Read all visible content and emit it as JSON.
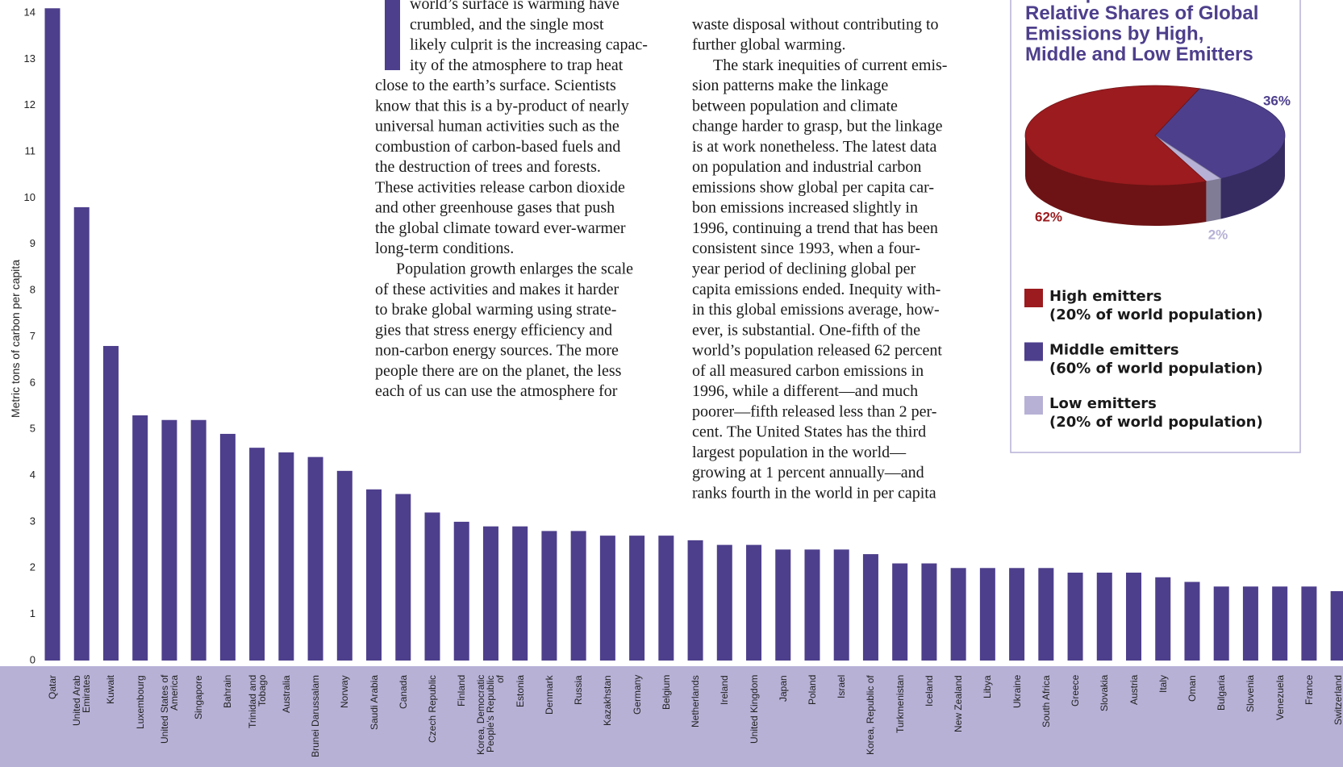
{
  "article": {
    "column1": [
      [
        "world’s surface is warming have",
        "crumbled, and the single most",
        "likely culprit is the increasing capac-",
        "ity of the atmosphere to trap heat",
        "close to the earth’s surface. Scientists",
        "know that this is a by-product of nearly",
        "universal human activities such as the",
        "combustion of carbon-based fuels and",
        "the destruction of trees and forests.",
        "These activities release carbon dioxide",
        "and other greenhouse gases that push",
        "the global climate toward ever-warmer",
        "long-term conditions."
      ],
      [
        "Population growth enlarges the scale",
        "of these activities and makes it harder",
        "to brake global warming using strate-",
        "gies that stress energy efficiency and",
        "non-carbon energy sources. The more",
        "people there are on the planet, the less",
        "each of us can use the atmosphere for"
      ]
    ],
    "column2": [
      [
        "waste disposal without contributing to",
        "further global warming."
      ],
      [
        "The stark inequities of current emis-",
        "sion patterns make the linkage",
        "between population and climate",
        "change harder to grasp, but the linkage",
        "is at work nonetheless. The latest data",
        "on population and industrial carbon",
        "emissions show global per capita car-",
        "bon emissions increased slightly in",
        "1996, continuing a trend that has been",
        "consistent since 1993, when a four-",
        "year period of declining global per",
        "capita emissions ended. Inequity with-",
        "in this global emissions average, how-",
        "ever, is substantial. One-fifth of the",
        "world’s population released 62 percent",
        "of all measured carbon emissions in",
        "1996, while a different—and much",
        "poorer—fifth released less than 2 per-",
        "cent. The United States has the third",
        "largest population in the world—",
        "growing at 1 percent annually—and",
        "ranks fourth in the world in per capita"
      ]
    ]
  },
  "chart_data": [
    {
      "type": "bar",
      "ylabel": "Metric tons of carbon per capita",
      "categories": [
        "Qatar",
        "United Arab Emirates",
        "Kuwait",
        "Luxembourg",
        "United States of America",
        "Singapore",
        "Bahrain",
        "Trinidad and Tobago",
        "Australia",
        "Brunei Darussalam",
        "Norway",
        "Saudi Arabia",
        "Canada",
        "Czech Republic",
        "Finland",
        "Korea, Democratic People's Republic of",
        "Estonia",
        "Denmark",
        "Russia",
        "Kazakhstan",
        "Germany",
        "Belgium",
        "Netherlands",
        "Ireland",
        "United Kingdom",
        "Japan",
        "Poland",
        "Israel",
        "Korea, Republic of",
        "Turkmenistan",
        "Iceland",
        "New Zealand",
        "Libya",
        "Ukraine",
        "South Africa",
        "Greece",
        "Slovakia",
        "Austria",
        "Italy",
        "Oman",
        "Bulgaria",
        "Slovenia",
        "Venezuela",
        "France",
        "Switzerland"
      ],
      "values": [
        14.1,
        9.8,
        6.8,
        5.3,
        5.2,
        5.2,
        4.9,
        4.6,
        4.5,
        4.4,
        4.1,
        3.7,
        3.6,
        3.2,
        3.0,
        2.9,
        2.9,
        2.8,
        2.8,
        2.7,
        2.7,
        2.7,
        2.6,
        2.5,
        2.5,
        2.4,
        2.4,
        2.4,
        2.3,
        2.1,
        2.1,
        2.0,
        2.0,
        2.0,
        2.0,
        1.9,
        1.9,
        1.9,
        1.8,
        1.7,
        1.6,
        1.6,
        1.6,
        1.6,
        1.5
      ],
      "color": "#4e3f8c",
      "ylim": [
        0,
        14
      ],
      "yticks": [
        0,
        1,
        2,
        3,
        4,
        5,
        6,
        7,
        8,
        9,
        10,
        11,
        12,
        13,
        14
      ],
      "grid": false
    },
    {
      "type": "pie",
      "title": [
        "Atmospheric Overload:",
        "Relative Shares of Global",
        "Emissions by High,",
        "Middle and Low Emitters"
      ],
      "series": [
        {
          "name": "High emitters",
          "population": "(20% of world population)",
          "color": "#9b1b1e",
          "values": [
            62
          ],
          "value_labels": [
            "62%"
          ]
        },
        {
          "name": "Middle emitters",
          "population": "(60% of world population)",
          "color": "#4e3f8c",
          "values": [
            36
          ],
          "value_labels": [
            "36%"
          ]
        },
        {
          "name": "Low emitters",
          "population": "(20% of world population)",
          "color": "#b7b1d6",
          "values": [
            2
          ],
          "value_labels": [
            "2%"
          ]
        }
      ]
    }
  ]
}
